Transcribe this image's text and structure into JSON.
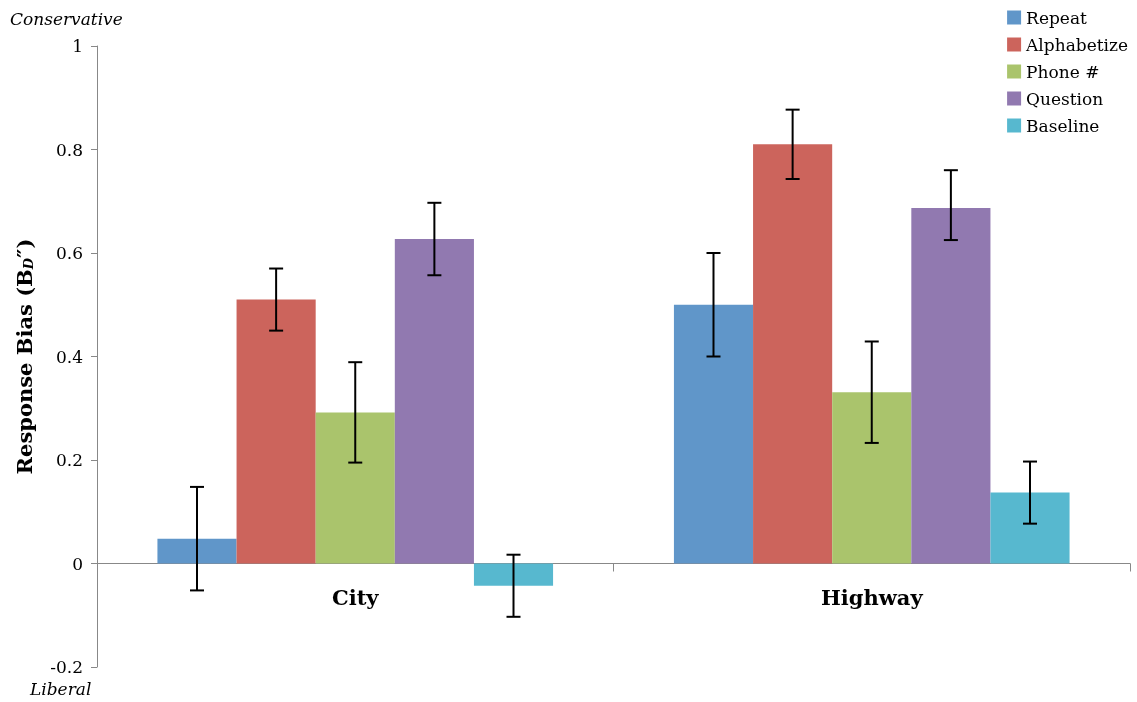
{
  "chart_data": {
    "type": "bar",
    "ylabel": "Response Bias (B$_{D}$″)",
    "categories": [
      "City",
      "Highway"
    ],
    "series": [
      {
        "name": "Repeat",
        "color": "#6096c9",
        "values": [
          0.048,
          0.5
        ],
        "errors": [
          0.1,
          0.1
        ]
      },
      {
        "name": "Alphabetize",
        "color": "#cc645c",
        "values": [
          0.51,
          0.81
        ],
        "errors": [
          0.06,
          0.067
        ]
      },
      {
        "name": "Phone #",
        "color": "#aac46c",
        "values": [
          0.292,
          0.331
        ],
        "errors": [
          0.097,
          0.098
        ]
      },
      {
        "name": "Question",
        "color": "#9179b0",
        "values": [
          0.627,
          0.687
        ],
        "errors": [
          0.07,
          [
            0.625,
            0.76
          ]
        ]
      },
      {
        "name": "Baseline",
        "color": "#57b8cf",
        "values": [
          -0.043,
          0.137
        ],
        "errors": [
          0.06,
          0.06
        ]
      }
    ],
    "ylim": [
      -0.2,
      1
    ],
    "yticks": [
      -0.2,
      0,
      0.2,
      0.4,
      0.6,
      0.8,
      1
    ],
    "grid": false,
    "legend": "top right",
    "annotations": [
      "Conservative",
      "Liberal"
    ]
  }
}
